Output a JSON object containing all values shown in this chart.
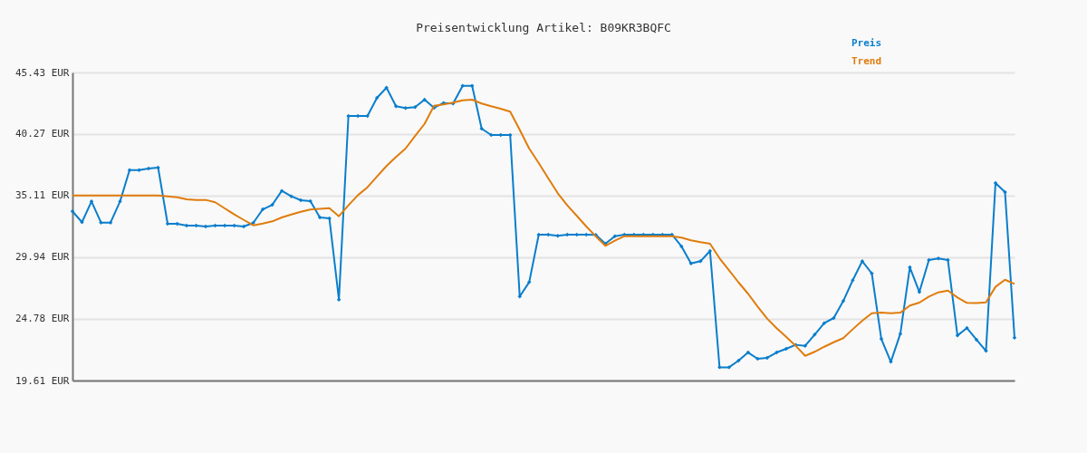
{
  "chart_data": {
    "type": "line",
    "title": "Preisentwicklung Artikel: B09KR3BQFC",
    "categories": [
      null,
      null,
      null,
      null,
      null,
      null,
      null,
      null,
      null,
      null,
      null,
      null,
      null,
      null,
      null,
      null,
      null,
      null,
      null,
      null,
      null,
      null,
      null,
      null,
      null,
      null,
      null,
      null,
      null,
      null,
      null,
      null,
      null,
      null,
      null,
      null,
      null,
      null,
      null,
      null,
      null,
      null,
      null,
      null,
      null,
      null,
      null,
      null,
      null,
      null,
      null,
      null,
      null,
      null,
      null,
      null,
      null,
      null,
      null,
      null,
      null,
      null,
      null,
      null,
      null,
      null,
      null,
      null,
      null,
      null,
      null,
      null,
      null,
      null,
      null,
      null,
      null,
      null,
      null,
      null,
      null,
      null,
      null,
      null,
      null,
      null,
      null,
      null,
      null,
      null,
      null,
      null,
      null,
      null,
      null,
      null,
      null,
      null,
      null,
      null
    ],
    "series": [
      {
        "name": "Preis",
        "color": "#0a7ecc",
        "marker": "diamond",
        "values": [
          33.79,
          32.88,
          34.62,
          32.85,
          32.85,
          34.62,
          37.25,
          37.25,
          37.38,
          37.46,
          32.75,
          32.75,
          32.6,
          32.6,
          32.52,
          32.6,
          32.6,
          32.6,
          32.52,
          32.82,
          33.96,
          34.34,
          35.51,
          35.05,
          34.72,
          34.65,
          33.28,
          33.2,
          26.39,
          41.78,
          41.78,
          41.78,
          43.3,
          44.16,
          42.6,
          42.45,
          42.52,
          43.15,
          42.47,
          42.87,
          42.83,
          44.31,
          44.31,
          40.72,
          40.19,
          40.19,
          40.19,
          26.65,
          27.86,
          31.84,
          31.84,
          31.74,
          31.84,
          31.84,
          31.84,
          31.82,
          31.08,
          31.71,
          31.84,
          31.84,
          31.84,
          31.84,
          31.84,
          31.84,
          30.85,
          29.43,
          29.61,
          30.47,
          20.72,
          20.72,
          21.28,
          21.96,
          21.43,
          21.51,
          21.96,
          22.27,
          22.6,
          22.52,
          23.46,
          24.42,
          24.85,
          26.27,
          28.02,
          29.61,
          28.59,
          23.1,
          21.18,
          23.53,
          29.1,
          27.03,
          29.71,
          29.84,
          29.71,
          23.38,
          24.01,
          23.03,
          22.09,
          36.17,
          35.41,
          23.2
        ]
      },
      {
        "name": "Trend",
        "color": "#e07c0c",
        "marker": "none",
        "values": [
          35.13,
          35.13,
          35.13,
          35.13,
          35.13,
          35.13,
          35.13,
          35.13,
          35.13,
          35.13,
          35.05,
          34.97,
          34.8,
          34.75,
          34.75,
          34.55,
          34.04,
          33.53,
          33.07,
          32.62,
          32.77,
          32.95,
          33.28,
          33.53,
          33.76,
          33.94,
          34.01,
          34.06,
          33.38,
          34.29,
          35.15,
          35.81,
          36.7,
          37.59,
          38.35,
          39.05,
          40.11,
          41.12,
          42.64,
          42.75,
          42.9,
          43.1,
          43.15,
          42.83,
          42.6,
          42.39,
          42.14,
          40.62,
          39.05,
          37.84,
          36.57,
          35.31,
          34.29,
          33.41,
          32.52,
          31.69,
          30.9,
          31.33,
          31.71,
          31.71,
          31.71,
          31.71,
          31.71,
          31.71,
          31.59,
          31.36,
          31.21,
          31.08,
          29.86,
          28.85,
          27.83,
          26.88,
          25.81,
          24.8,
          24.0,
          23.28,
          22.52,
          21.68,
          22.02,
          22.44,
          22.82,
          23.16,
          23.91,
          24.62,
          25.25,
          25.3,
          25.25,
          25.3,
          25.89,
          26.14,
          26.65,
          27.0,
          27.15,
          26.57,
          26.12,
          26.1,
          26.16,
          27.46,
          28.06,
          27.71
        ]
      }
    ],
    "ylim": [
      19.61,
      45.43
    ],
    "yticks": [
      {
        "value": 19.61,
        "label": "19.61 EUR"
      },
      {
        "value": 24.78,
        "label": "24.78 EUR"
      },
      {
        "value": 29.94,
        "label": "29.94 EUR"
      },
      {
        "value": 35.11,
        "label": "35.11 EUR"
      },
      {
        "value": 40.27,
        "label": "40.27 EUR"
      },
      {
        "value": 45.43,
        "label": "45.43 EUR"
      }
    ],
    "grid": "y",
    "legend": "top right",
    "line_style": "solid",
    "tick_labels": "y"
  }
}
